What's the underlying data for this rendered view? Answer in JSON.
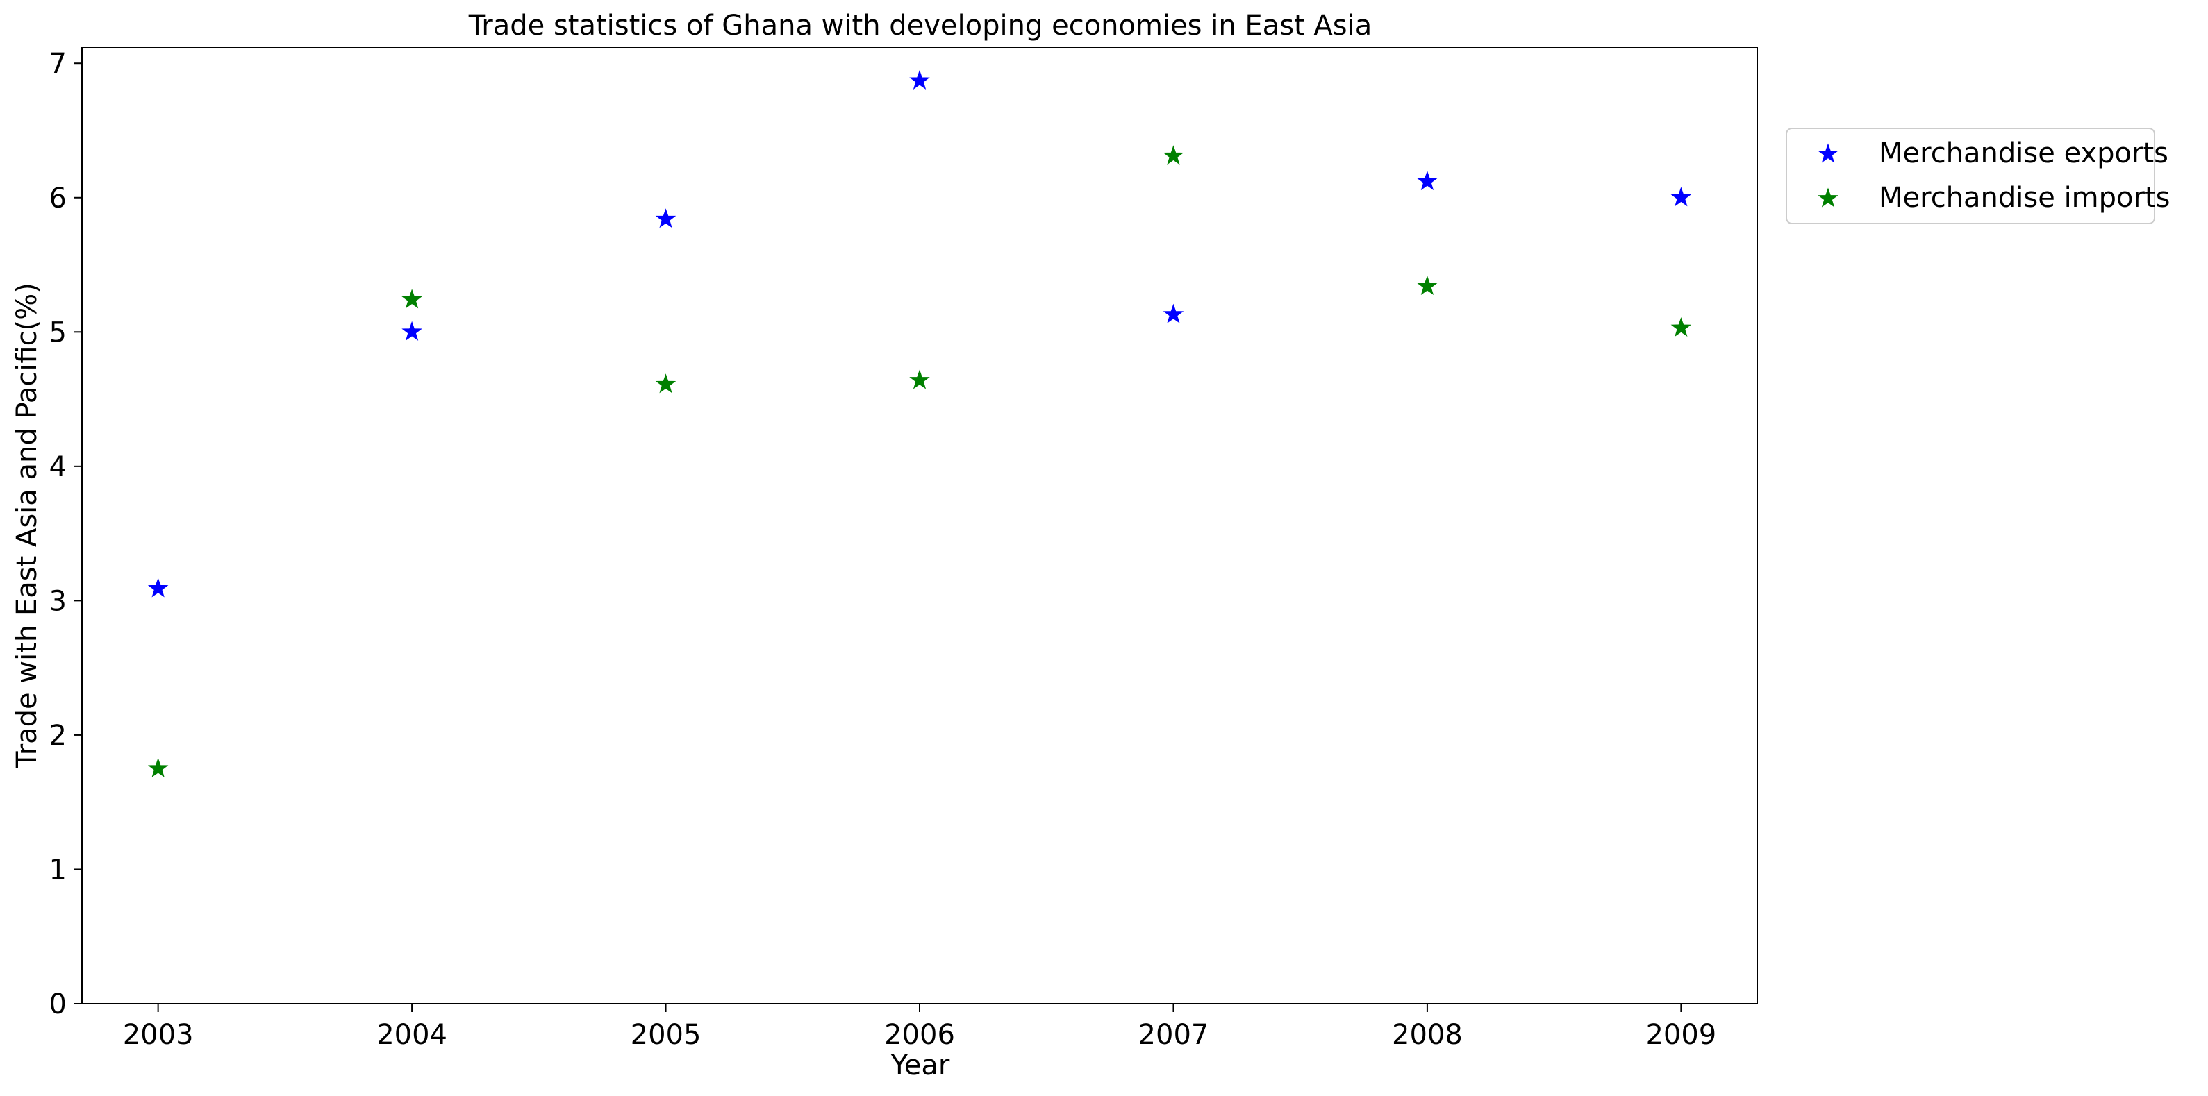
{
  "chart_data": {
    "type": "scatter",
    "title": "Trade statistics of Ghana with developing economies in East Asia",
    "xlabel": "Year",
    "ylabel": "Trade with East Asia and Pacific(%)",
    "x": [
      2003,
      2004,
      2005,
      2006,
      2007,
      2008,
      2009
    ],
    "x_tick_labels": [
      "2003",
      "2004",
      "2005",
      "2006",
      "2007",
      "2008",
      "2009"
    ],
    "y_ticks": [
      0,
      1,
      2,
      3,
      4,
      5,
      6,
      7
    ],
    "y_tick_labels": [
      "0",
      "1",
      "2",
      "3",
      "4",
      "5",
      "6",
      "7"
    ],
    "xlim": [
      2002.7,
      2009.3
    ],
    "ylim": [
      0,
      7.12
    ],
    "grid": false,
    "marker": "star",
    "legend": {
      "placement": "outside-top-right",
      "entries": [
        "Merchandise exports",
        "Merchandise imports"
      ]
    },
    "series": [
      {
        "name": "Merchandise exports",
        "color": "#0000ff",
        "values": [
          3.09,
          5.0,
          5.84,
          6.87,
          5.13,
          6.12,
          6.0
        ]
      },
      {
        "name": "Merchandise imports",
        "color": "#008000",
        "values": [
          1.75,
          5.24,
          4.61,
          4.64,
          6.31,
          5.34,
          5.03
        ]
      }
    ]
  }
}
